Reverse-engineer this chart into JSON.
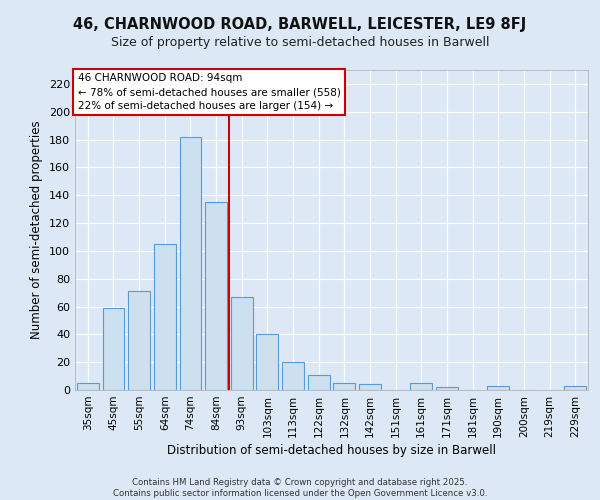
{
  "title1": "46, CHARNWOOD ROAD, BARWELL, LEICESTER, LE9 8FJ",
  "title2": "Size of property relative to semi-detached houses in Barwell",
  "xlabel": "Distribution of semi-detached houses by size in Barwell",
  "ylabel": "Number of semi-detached properties",
  "categories": [
    "35sqm",
    "45sqm",
    "55sqm",
    "64sqm",
    "74sqm",
    "84sqm",
    "93sqm",
    "103sqm",
    "113sqm",
    "122sqm",
    "132sqm",
    "142sqm",
    "151sqm",
    "161sqm",
    "171sqm",
    "181sqm",
    "190sqm",
    "200sqm",
    "219sqm",
    "229sqm"
  ],
  "values": [
    5,
    59,
    71,
    105,
    182,
    135,
    67,
    40,
    20,
    11,
    5,
    4,
    0,
    5,
    2,
    0,
    3,
    0,
    0,
    3
  ],
  "bar_color": "#cce0f0",
  "bar_edge_color": "#5b9bd5",
  "vline_color": "#cc0000",
  "annotation_text": "46 CHARNWOOD ROAD: 94sqm\n← 78% of semi-detached houses are smaller (558)\n22% of semi-detached houses are larger (154) →",
  "annotation_box_color": "#ffffff",
  "annotation_box_edge": "#cc0000",
  "bg_color": "#dce8f5",
  "footer": "Contains HM Land Registry data © Crown copyright and database right 2025.\nContains public sector information licensed under the Open Government Licence v3.0.",
  "ylim": [
    0,
    230
  ],
  "yticks": [
    0,
    20,
    40,
    60,
    80,
    100,
    120,
    140,
    160,
    180,
    200,
    220
  ]
}
